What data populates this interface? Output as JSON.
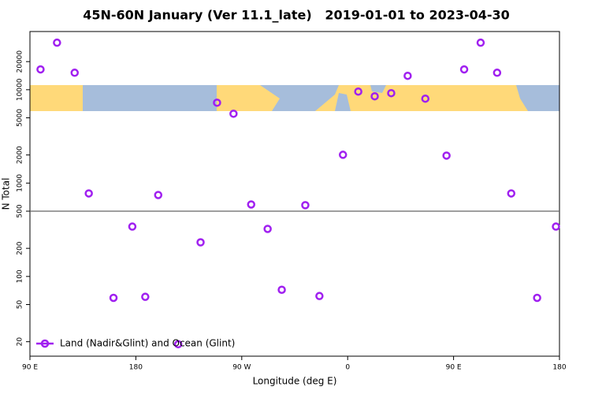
{
  "chart_data": {
    "type": "scatter",
    "title": "45N-60N January (Ver 11.1_late)   2019-01-01 to 2023-04-30",
    "x_label": "Longitude (deg E)",
    "y_label": "N Total",
    "x": [
      99,
      113,
      128,
      140,
      161,
      177,
      188,
      199,
      216,
      235,
      249,
      263,
      278,
      292,
      304,
      324,
      336,
      356,
      369,
      383,
      397,
      411,
      426,
      444,
      459,
      473,
      487,
      499,
      521,
      537
    ],
    "series": [
      {
        "name": "Land (Nadir&Glint) and Ocean (Glint)",
        "color": "#a020f0",
        "values": [
          16500,
          31900,
          15200,
          775,
          59,
          342,
          60.5,
          745,
          18.8,
          232,
          7260,
          5530,
          590,
          323,
          72,
          580,
          61.7,
          2010,
          9550,
          8500,
          9190,
          14090,
          8020,
          1970,
          16500,
          31900,
          15200,
          775,
          59,
          342
        ]
      }
    ],
    "xlim": [
      90,
      540
    ],
    "xticks": [
      {
        "value": 90,
        "label": "90 E"
      },
      {
        "value": 180,
        "label": "180"
      },
      {
        "value": 270,
        "label": "90 W"
      },
      {
        "value": 360,
        "label": "0"
      },
      {
        "value": 450,
        "label": "90 E"
      },
      {
        "value": 540,
        "label": "180"
      }
    ],
    "ylim": [
      14,
      42000
    ],
    "yticks": [
      20,
      50,
      100,
      200,
      500,
      1000,
      2000,
      5000,
      10000,
      20000
    ],
    "log_y": true,
    "reference_line": 500,
    "legend": "lower left"
  }
}
